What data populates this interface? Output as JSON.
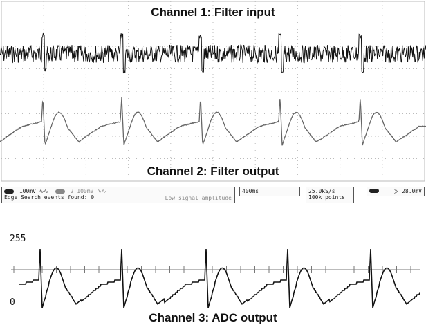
{
  "chart_data": [
    {
      "type": "line",
      "title": "Channel 1: Filter input",
      "series": [
        {
          "values": [
            0.0,
            0.02,
            -0.05,
            0.04,
            -0.02,
            0.06,
            0.5,
            -0.4,
            0.03,
            -0.03,
            0.05,
            -0.04,
            0.02,
            0.0
          ]
        }
      ],
      "beat_times": [
        62,
        176,
        290,
        405,
        521
      ],
      "grid": true
    },
    {
      "type": "line",
      "title": "Channel 2: Filter output",
      "series": [
        {
          "values": [
            0.0,
            0.05,
            0.1,
            0.12,
            0.9,
            -0.35,
            0.15,
            0.5,
            0.3,
            -0.1,
            -0.2,
            -0.15,
            -0.05,
            0.0
          ]
        }
      ],
      "beat_times": [
        62,
        176,
        290,
        405,
        521
      ],
      "grid": true
    },
    {
      "type": "line",
      "title": "Channel 3: ADC output",
      "ylim": [
        0,
        255
      ],
      "y_ticks": [
        "255",
        "0"
      ],
      "beat_times": [
        58,
        176,
        298,
        416,
        536
      ],
      "series": [
        {
          "values": [
            60,
            62,
            66,
            70,
            250,
            90,
            100,
            150,
            140,
            110,
            80,
            70,
            64,
            60
          ]
        }
      ]
    }
  ],
  "status_bar": {
    "ch1_scale": "100mV",
    "ch2_scale": "100mV",
    "ch_symbol": "∿∿",
    "ch1_num": "",
    "ch2_num": "2",
    "timebase": "400ms",
    "sample_rate": "25.0kS/s",
    "record_length": "100k points",
    "trigger_level": "28.0mV",
    "trigger_slope": "⅀",
    "search_text": "Edge Search events found: 0",
    "warning_text": "Low signal amplitude"
  }
}
